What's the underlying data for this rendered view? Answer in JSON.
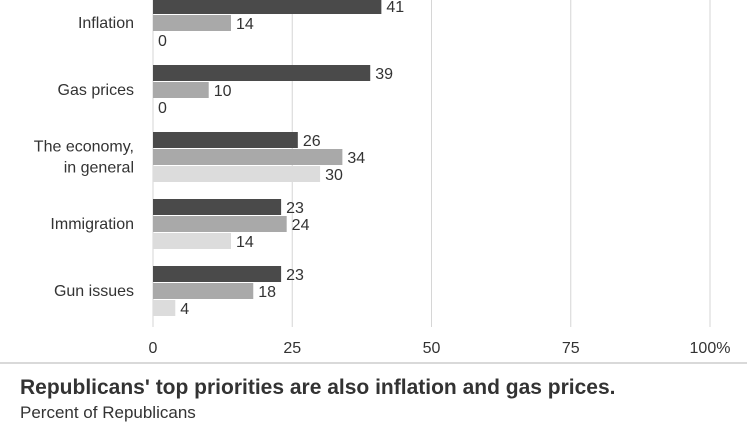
{
  "chart_data": {
    "type": "bar",
    "orientation": "horizontal",
    "categories": [
      "Inflation",
      "Gas prices",
      "The economy,\nin general",
      "Immigration",
      "Gun issues"
    ],
    "series": [
      {
        "values": [
          41,
          39,
          26,
          23,
          23
        ]
      },
      {
        "values": [
          14,
          10,
          34,
          24,
          18
        ]
      },
      {
        "values": [
          0,
          0,
          30,
          14,
          4
        ]
      }
    ],
    "x_ticks": [
      "0",
      "25",
      "50",
      "75",
      "100%"
    ],
    "xlim": [
      0,
      100
    ],
    "grid": true,
    "colors": [
      "#4a4a4a",
      "#a9a9a9",
      "#dcdcdc"
    ],
    "title": "Republicans' top priorities are also inflation and gas prices.",
    "subtitle": "Percent of Republicans"
  }
}
